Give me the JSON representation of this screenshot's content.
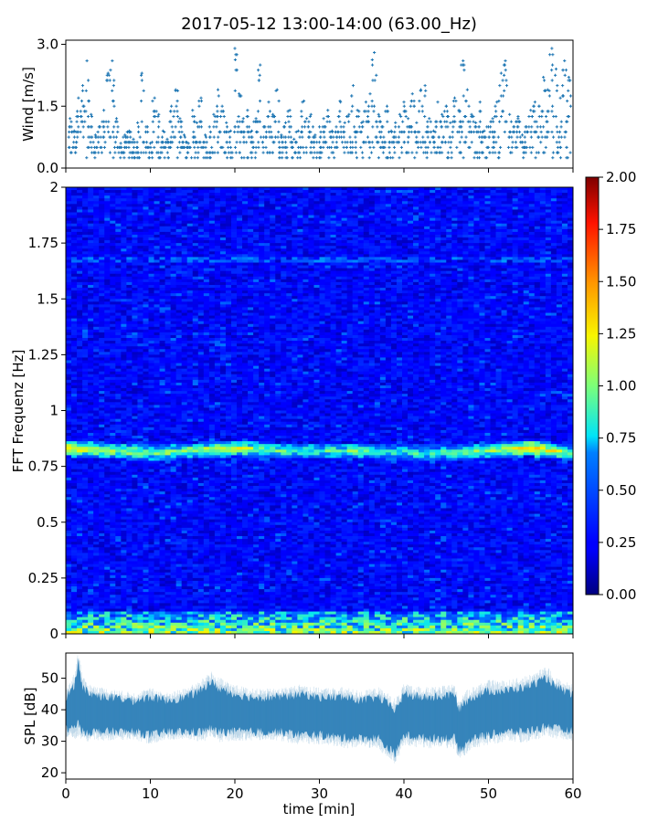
{
  "figure": {
    "title": "2017-05-12 13:00-14:00 (63.00_Hz)"
  },
  "chart_data": [
    {
      "type": "scatter",
      "panel": "wind",
      "ylabel": "Wind [m/s]",
      "xlabel": "",
      "xlim": [
        0,
        60
      ],
      "ylim": [
        0,
        3.1
      ],
      "yticks": [
        "0.0",
        "1.5",
        "3.0"
      ],
      "ytick_values": [
        0,
        1.5,
        3.0
      ],
      "xtick_values": [
        0,
        10,
        20,
        30,
        40,
        50,
        60
      ],
      "marker": "+",
      "series": [
        {
          "x": [
            0.5,
            1,
            1.5,
            2,
            2.5,
            3,
            3.5,
            4,
            4.5,
            5,
            5.5,
            6,
            6.5,
            7,
            7.5,
            8,
            8.5,
            9,
            9.5,
            10,
            10.5,
            11,
            11.5,
            12,
            12.5,
            13,
            13.5,
            14,
            14.5,
            15,
            15.5,
            16,
            16.5,
            17,
            17.5,
            18,
            18.5,
            19,
            19.5,
            20,
            20.5,
            21,
            21.5,
            22,
            22.5,
            23,
            23.5,
            24,
            24.5,
            25,
            25.5,
            26,
            26.5,
            27,
            27.5,
            28,
            28.5,
            29,
            29.5,
            30,
            30.5,
            31,
            31.5,
            32,
            32.5,
            33,
            33.5,
            34,
            34.5,
            35,
            35.5,
            36,
            36.5,
            37,
            37.5,
            38,
            38.5,
            39,
            39.5,
            40,
            40.5,
            41,
            41.5,
            42,
            42.5,
            43,
            43.5,
            44,
            44.5,
            45,
            45.5,
            46,
            46.5,
            47,
            47.5,
            48,
            48.5,
            49,
            49.5,
            50,
            50.5,
            51,
            51.5,
            52,
            52.5,
            53,
            53.5,
            54,
            54.5,
            55,
            55.5,
            56,
            56.5,
            57,
            57.5,
            58,
            58.5,
            59,
            59.5
          ],
          "y": [
            1.2,
            0.9,
            1.7,
            2.0,
            2.6,
            1.3,
            0.8,
            1.0,
            1.4,
            2.3,
            2.6,
            1.2,
            0.6,
            0.8,
            0.9,
            0.7,
            1.1,
            2.3,
            1.0,
            0.6,
            1.7,
            1.3,
            0.9,
            0.7,
            1.5,
            1.9,
            1.2,
            0.8,
            0.6,
            1.4,
            1.1,
            1.7,
            0.8,
            1.0,
            1.3,
            1.9,
            1.5,
            1.1,
            0.9,
            2.9,
            1.8,
            1.2,
            1.4,
            0.9,
            1.2,
            2.5,
            1.0,
            1.6,
            1.3,
            1.9,
            0.8,
            1.1,
            1.4,
            0.7,
            0.9,
            1.6,
            1.2,
            1.3,
            0.8,
            1.0,
            1.2,
            1.4,
            0.9,
            1.0,
            1.6,
            1.1,
            1.3,
            2.0,
            1.4,
            1.1,
            1.6,
            1.8,
            2.8,
            1.3,
            1.0,
            1.5,
            0.9,
            1.1,
            1.3,
            1.6,
            1.2,
            1.8,
            1.1,
            1.9,
            2.0,
            1.2,
            0.9,
            1.6,
            1.3,
            1.5,
            1.1,
            1.7,
            1.4,
            2.6,
            1.9,
            1.3,
            1.1,
            1.6,
            0.9,
            1.0,
            1.2,
            1.6,
            2.3,
            2.6,
            1.3,
            1.0,
            1.2,
            0.8,
            1.0,
            1.4,
            1.6,
            1.5,
            2.2,
            1.9,
            2.9,
            2.4,
            1.7,
            2.6,
            2.2
          ]
        }
      ]
    },
    {
      "type": "heatmap",
      "panel": "spectrogram",
      "ylabel": "FFT Frequenz [Hz]",
      "xlim": [
        0,
        60
      ],
      "ylim": [
        0,
        2
      ],
      "yticks": [
        "0",
        "0.25",
        "0.5",
        "0.75",
        "1",
        "1.25",
        "1.5",
        "1.75",
        "2"
      ],
      "ytick_values": [
        0,
        0.25,
        0.5,
        0.75,
        1,
        1.25,
        1.5,
        1.75,
        2
      ],
      "xtick_values": [
        0,
        10,
        20,
        30,
        40,
        50,
        60
      ],
      "colormap": "jet",
      "colorbar": {
        "min": 0,
        "max": 2,
        "ticks": [
          "0.00",
          "0.25",
          "0.50",
          "0.75",
          "1.00",
          "1.25",
          "1.50",
          "1.75",
          "2.00"
        ],
        "tick_values": [
          0,
          0.25,
          0.5,
          0.75,
          1.0,
          1.25,
          1.5,
          1.75,
          2.0
        ]
      },
      "background_level": 0.25,
      "ridge": {
        "x_minutes": [
          0,
          5,
          10,
          15,
          20,
          25,
          30,
          35,
          40,
          45,
          50,
          55,
          60
        ],
        "freq_hz": [
          0.83,
          0.82,
          0.81,
          0.82,
          0.83,
          0.82,
          0.82,
          0.82,
          0.81,
          0.81,
          0.82,
          0.83,
          0.81
        ],
        "intensity": [
          1.3,
          1.1,
          1.0,
          1.1,
          1.2,
          0.95,
          0.9,
          1.0,
          0.85,
          0.9,
          1.0,
          1.4,
          1.0
        ]
      },
      "low_band": {
        "freq_range_hz": [
          0,
          0.1
        ],
        "intensity": 0.9
      },
      "faint_band": {
        "freq_hz": 1.68,
        "intensity": 0.5
      }
    },
    {
      "type": "area",
      "panel": "spl",
      "ylabel": "SPL [dB]",
      "xlabel": "time [min]",
      "xlim": [
        0,
        60
      ],
      "ylim": [
        18,
        58
      ],
      "yticks": [
        "20",
        "30",
        "40",
        "50"
      ],
      "ytick_values": [
        20,
        30,
        40,
        50
      ],
      "xticks": [
        "0",
        "10",
        "20",
        "30",
        "40",
        "50",
        "60"
      ],
      "xtick_values": [
        0,
        10,
        20,
        30,
        40,
        50,
        60
      ],
      "envelope": {
        "x": [
          0,
          1,
          1.5,
          2,
          3,
          5,
          8,
          10,
          12,
          14,
          16,
          17,
          18,
          20,
          22,
          25,
          28,
          30,
          33,
          35,
          37,
          38,
          39,
          40,
          42,
          44,
          46,
          46.5,
          47,
          48,
          50,
          52,
          54,
          56,
          57,
          58,
          60
        ],
        "upper": [
          44,
          48,
          55,
          47,
          45,
          44,
          43,
          44,
          43,
          44,
          46,
          49,
          47,
          45,
          44,
          44,
          45,
          44,
          44,
          43,
          44,
          42,
          40,
          45,
          44,
          44,
          45,
          40,
          42,
          44,
          46,
          46,
          47,
          49,
          50,
          47,
          45
        ],
        "lower": [
          34,
          34,
          36,
          33,
          33,
          33,
          33,
          32,
          33,
          33,
          33,
          34,
          33,
          33,
          33,
          33,
          32,
          32,
          31,
          31,
          31,
          28,
          26,
          32,
          31,
          31,
          31,
          27,
          28,
          31,
          32,
          33,
          33,
          34,
          35,
          34,
          33
        ]
      }
    }
  ]
}
